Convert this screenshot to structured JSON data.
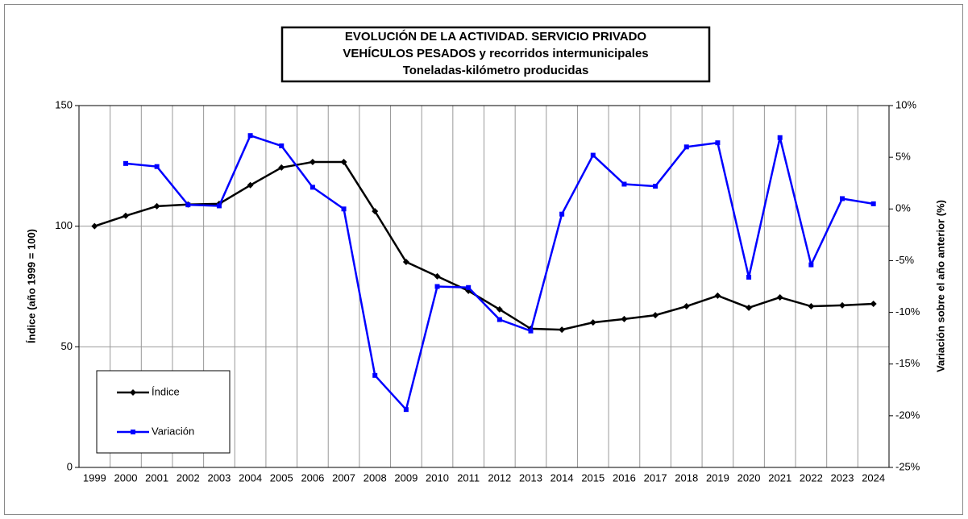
{
  "chart_data": {
    "type": "line",
    "title": [
      "EVOLUCIÓN  DE  LA  ACTIVIDAD.  SERVICIO  PRIVADO",
      "VEHÍCULOS  PESADOS  y  recorridos  intermunicipales",
      "Toneladas-kilómetro producidas"
    ],
    "ylabel": "Índice (año 1999 = 100)",
    "y2label": "Variación sobre el año anterior (%)",
    "categories": [
      "1999",
      "2000",
      "2001",
      "2002",
      "2003",
      "2004",
      "2005",
      "2006",
      "2007",
      "2008",
      "2009",
      "2010",
      "2011",
      "2012",
      "2013",
      "2014",
      "2015",
      "2016",
      "2017",
      "2018",
      "2019",
      "2020",
      "2021",
      "2022",
      "2023",
      "2024"
    ],
    "series": [
      {
        "name": "Índice",
        "color": "#000000",
        "marker": "diamond",
        "values": [
          100,
          104.3,
          108.3,
          109,
          109.3,
          117,
          124.3,
          126.6,
          126.6,
          106.2,
          85.2,
          79.2,
          73.2,
          65.5,
          57.5,
          57.1,
          60.1,
          61.5,
          63.1,
          66.8,
          71.2,
          66.2,
          70.5,
          66.8,
          67.2,
          67.8
        ]
      },
      {
        "name": "Variación",
        "color": "#0000ff",
        "marker": "square",
        "axis": "y2",
        "values": [
          null,
          4.4,
          4.1,
          0.4,
          0.3,
          7.1,
          6.1,
          2.1,
          0.0,
          -16.1,
          -19.4,
          -7.5,
          -7.6,
          -10.7,
          -11.8,
          -0.5,
          5.2,
          2.4,
          2.2,
          6.0,
          6.4,
          -6.6,
          6.9,
          -5.4,
          1.0,
          0.5
        ]
      }
    ],
    "ylim": [
      0,
      150
    ],
    "yticks": [
      0,
      50,
      100,
      150
    ],
    "y2lim": [
      -25,
      10
    ],
    "y2ticks": [
      {
        "value": -25,
        "label": "-25%"
      },
      {
        "value": -20,
        "label": "-20%"
      },
      {
        "value": -15,
        "label": "-15%"
      },
      {
        "value": -10,
        "label": "-10%"
      },
      {
        "value": -5,
        "label": "-5%"
      },
      {
        "value": 0,
        "label": "0%"
      },
      {
        "value": 5,
        "label": "5%"
      },
      {
        "value": 10,
        "label": "10%"
      }
    ],
    "grid": true,
    "legend": "lower left"
  }
}
